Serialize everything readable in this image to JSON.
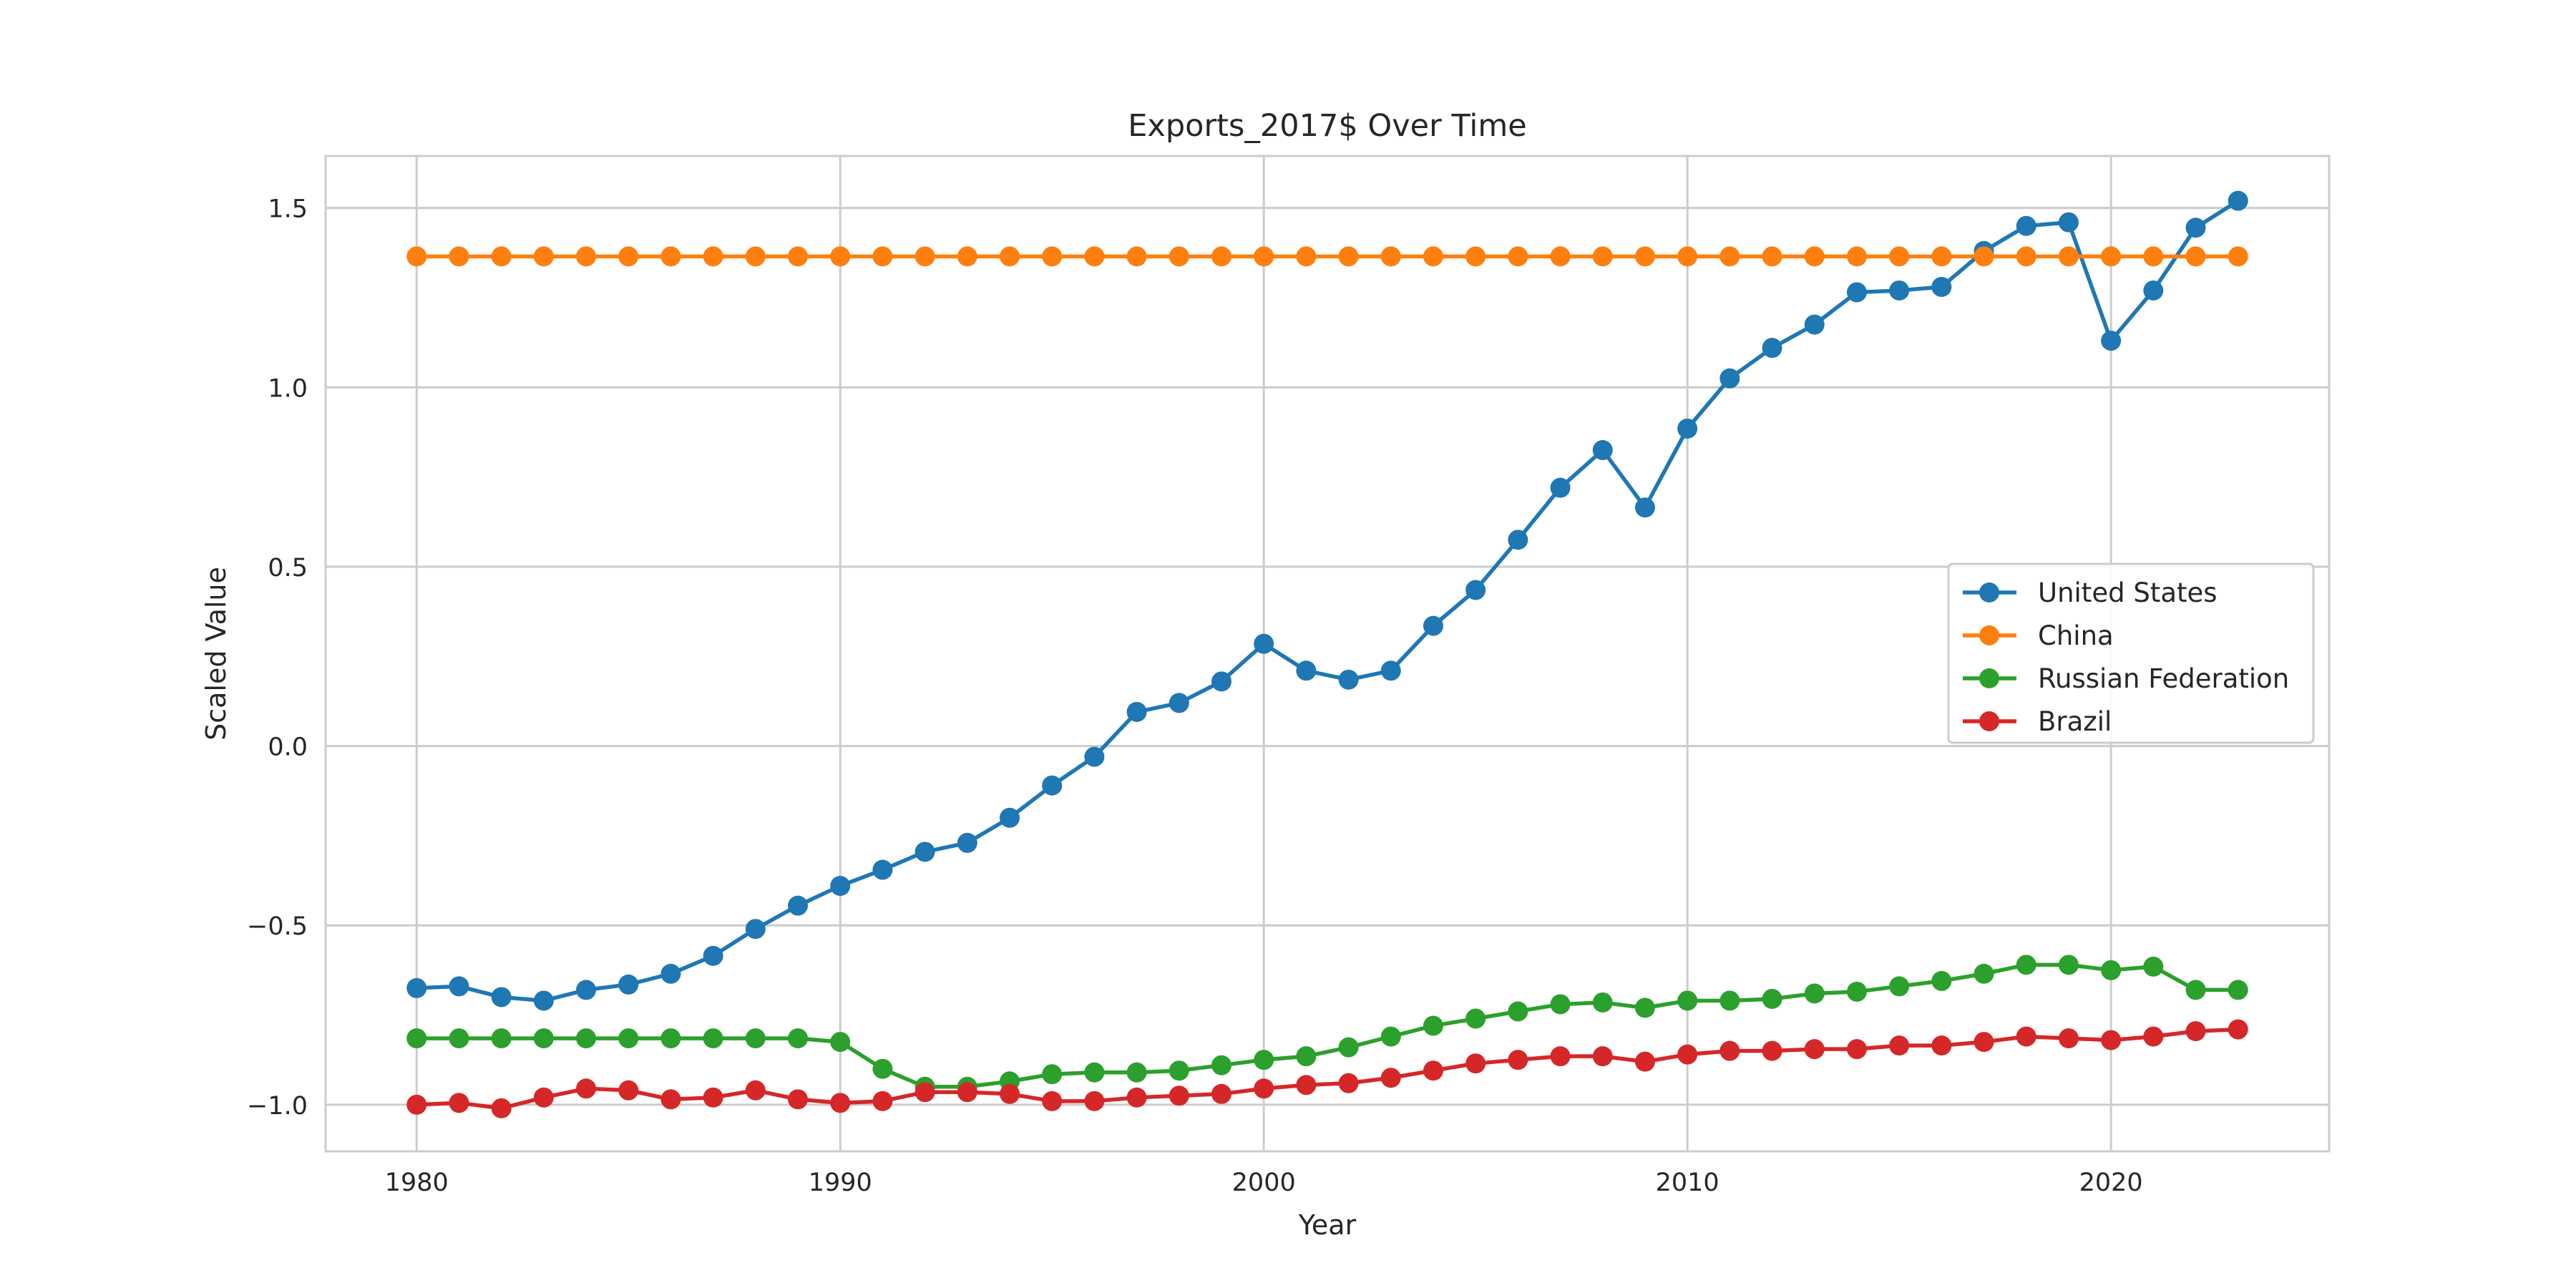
{
  "chart_data": {
    "type": "line",
    "title": "Exports_2017$ Over Time",
    "xlabel": "Year",
    "ylabel": "Scaled Value",
    "xlim": [
      1977.85,
      2025.15
    ],
    "ylim": [
      -1.13,
      1.645
    ],
    "xticks": [
      1980,
      1990,
      2000,
      2010,
      2020
    ],
    "xtick_labels": [
      "1980",
      "1990",
      "2000",
      "2010",
      "2020"
    ],
    "yticks": [
      -1.0,
      -0.5,
      0.0,
      0.5,
      1.0,
      1.5
    ],
    "ytick_labels": [
      "−1.0",
      "−0.5",
      "0.0",
      "0.5",
      "1.0",
      "1.5"
    ],
    "grid": true,
    "legend_position": "center-right",
    "x": [
      1980,
      1981,
      1982,
      1983,
      1984,
      1985,
      1986,
      1987,
      1988,
      1989,
      1990,
      1991,
      1992,
      1993,
      1994,
      1995,
      1996,
      1997,
      1998,
      1999,
      2000,
      2001,
      2002,
      2003,
      2004,
      2005,
      2006,
      2007,
      2008,
      2009,
      2010,
      2011,
      2012,
      2013,
      2014,
      2015,
      2016,
      2017,
      2018,
      2019,
      2020,
      2021,
      2022,
      2023
    ],
    "series": [
      {
        "name": "United States",
        "color": "#1f77b4",
        "values": [
          -0.675,
          -0.67,
          -0.7,
          -0.71,
          -0.68,
          -0.665,
          -0.635,
          -0.585,
          -0.51,
          -0.445,
          -0.39,
          -0.345,
          -0.295,
          -0.27,
          -0.2,
          -0.11,
          -0.03,
          0.095,
          0.12,
          0.18,
          0.285,
          0.21,
          0.185,
          0.21,
          0.335,
          0.435,
          0.575,
          0.72,
          0.825,
          0.665,
          0.885,
          1.025,
          1.11,
          1.175,
          1.265,
          1.27,
          1.28,
          1.38,
          1.45,
          1.46,
          1.13,
          1.27,
          1.445,
          1.52
        ]
      },
      {
        "name": "China",
        "color": "#ff7f0e",
        "values": [
          1.365,
          1.365,
          1.365,
          1.365,
          1.365,
          1.365,
          1.365,
          1.365,
          1.365,
          1.365,
          1.365,
          1.365,
          1.365,
          1.365,
          1.365,
          1.365,
          1.365,
          1.365,
          1.365,
          1.365,
          1.365,
          1.365,
          1.365,
          1.365,
          1.365,
          1.365,
          1.365,
          1.365,
          1.365,
          1.365,
          1.365,
          1.365,
          1.365,
          1.365,
          1.365,
          1.365,
          1.365,
          1.365,
          1.365,
          1.365,
          1.365,
          1.365,
          1.365,
          1.365
        ]
      },
      {
        "name": "Russian Federation",
        "color": "#2ca02c",
        "values": [
          -0.815,
          -0.815,
          -0.815,
          -0.815,
          -0.815,
          -0.815,
          -0.815,
          -0.815,
          -0.815,
          -0.815,
          -0.825,
          -0.9,
          -0.95,
          -0.95,
          -0.935,
          -0.915,
          -0.91,
          -0.91,
          -0.905,
          -0.89,
          -0.875,
          -0.865,
          -0.84,
          -0.81,
          -0.78,
          -0.76,
          -0.74,
          -0.72,
          -0.715,
          -0.73,
          -0.71,
          -0.71,
          -0.705,
          -0.69,
          -0.685,
          -0.67,
          -0.655,
          -0.635,
          -0.61,
          -0.61,
          -0.625,
          -0.615,
          -0.68,
          -0.68
        ]
      },
      {
        "name": "Brazil",
        "color": "#d62728",
        "values": [
          -1.0,
          -0.995,
          -1.01,
          -0.98,
          -0.955,
          -0.96,
          -0.985,
          -0.98,
          -0.96,
          -0.985,
          -0.995,
          -0.99,
          -0.965,
          -0.965,
          -0.97,
          -0.99,
          -0.99,
          -0.98,
          -0.975,
          -0.97,
          -0.955,
          -0.945,
          -0.94,
          -0.925,
          -0.905,
          -0.885,
          -0.875,
          -0.865,
          -0.865,
          -0.88,
          -0.86,
          -0.85,
          -0.85,
          -0.845,
          -0.845,
          -0.835,
          -0.835,
          -0.825,
          -0.81,
          -0.815,
          -0.82,
          -0.81,
          -0.795,
          -0.79
        ]
      }
    ]
  }
}
